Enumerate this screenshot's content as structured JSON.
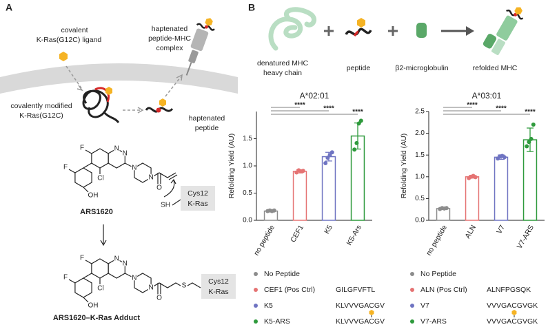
{
  "panel_a": {
    "label": "A",
    "ligand": [
      "covalent",
      "K-Ras(G12C) ligand"
    ],
    "complex": [
      "haptenated",
      "peptide-MHC",
      "complex"
    ],
    "modified": [
      "covalently modified",
      "K-Ras(G12C)"
    ],
    "peptide": [
      "haptenated",
      "peptide"
    ],
    "compound": "ARS1620",
    "adduct": "ARS1620–K-Ras Adduct",
    "cys_box": [
      "Cys12",
      "K-Ras"
    ],
    "atoms_1": [
      "F",
      "F",
      "N",
      "N",
      "N",
      "N",
      "Cl",
      "OH",
      "O",
      "SH"
    ],
    "atoms_2": [
      "F",
      "F",
      "N",
      "N",
      "N",
      "N",
      "Cl",
      "OH",
      "O",
      "S"
    ]
  },
  "panel_b": {
    "label": "B",
    "components": [
      [
        "denatured MHC",
        "heavy chain"
      ],
      [
        "peptide"
      ],
      [
        "β2-microglobulin"
      ],
      [
        "refolded MHC"
      ]
    ]
  },
  "chart_data": [
    {
      "type": "bar",
      "title": "A*02:01",
      "ylabel": "Refolding Yield (AU)",
      "categories": [
        "no peptide",
        "CEF1",
        "K5",
        "K5-Ars"
      ],
      "values": [
        0.17,
        0.9,
        1.17,
        1.55
      ],
      "errors": [
        0.01,
        0.03,
        0.08,
        0.24
      ],
      "points": [
        [
          0.17,
          0.18,
          0.17,
          0.18
        ],
        [
          0.88,
          0.92,
          0.9,
          0.91
        ],
        [
          1.05,
          1.15,
          1.2,
          1.25
        ],
        [
          1.3,
          1.42,
          1.78,
          1.83
        ]
      ],
      "colors": [
        "#8c8c8c",
        "#e57373",
        "#6f74c2",
        "#2e9a3c"
      ],
      "ylim": [
        0,
        2
      ],
      "yticks": [
        {
          "value": 0,
          "label": "0.0"
        },
        0.5,
        {
          "value": 1,
          "label": "1.0"
        },
        1.5
      ],
      "significance": [
        "****",
        "****",
        "****"
      ],
      "legend": [
        {
          "name": "No Peptide",
          "color": "#8c8c8c"
        },
        {
          "name": "CEF1 (Pos Ctrl)",
          "color": "#e57373",
          "sequence": [
            "GILGFVFTL"
          ]
        },
        {
          "name": "K5",
          "color": "#6f74c2",
          "sequence": [
            "KLVVVGA",
            "C",
            "GV"
          ]
        },
        {
          "name": "K5-ARS",
          "color": "#2e9a3c",
          "sequence": [
            "KLVVVGA",
            "C",
            "GV"
          ],
          "haptenated": true
        }
      ]
    },
    {
      "type": "bar",
      "title": "A*03:01",
      "ylabel": "Refolding Yield (AU)",
      "categories": [
        "no peptide",
        "ALN",
        "V7",
        "V7-ARS"
      ],
      "values": [
        0.27,
        1.0,
        1.45,
        1.85
      ],
      "errors": [
        0.02,
        0.03,
        0.05,
        0.27
      ],
      "points": [
        [
          0.26,
          0.28,
          0.27,
          0.28
        ],
        [
          0.97,
          1.0,
          1.02,
          0.99
        ],
        [
          1.42,
          1.47,
          1.48,
          1.45
        ],
        [
          1.7,
          1.8,
          1.87,
          2.2
        ]
      ],
      "colors": [
        "#8c8c8c",
        "#e57373",
        "#6f74c2",
        "#2e9a3c"
      ],
      "ylim": [
        0,
        2.5
      ],
      "yticks": [
        {
          "value": 0,
          "label": "0.0"
        },
        0.5,
        {
          "value": 1,
          "label": "1.0"
        },
        1.5,
        {
          "value": 2,
          "label": "2.0"
        },
        2.5
      ],
      "significance": [
        "****",
        "****",
        "****"
      ],
      "legend": [
        {
          "name": "No Peptide",
          "color": "#8c8c8c"
        },
        {
          "name": "ALN (Pos Ctrl)",
          "color": "#e57373",
          "sequence": [
            "ALNFPGSQK"
          ]
        },
        {
          "name": "V7",
          "color": "#6f74c2",
          "sequence": [
            "VVVGA",
            "C",
            "GVGK"
          ]
        },
        {
          "name": "V7-ARS",
          "color": "#2e9a3c",
          "sequence": [
            "VVVGA",
            "C",
            "GVGK"
          ],
          "haptenated": true
        }
      ]
    }
  ]
}
